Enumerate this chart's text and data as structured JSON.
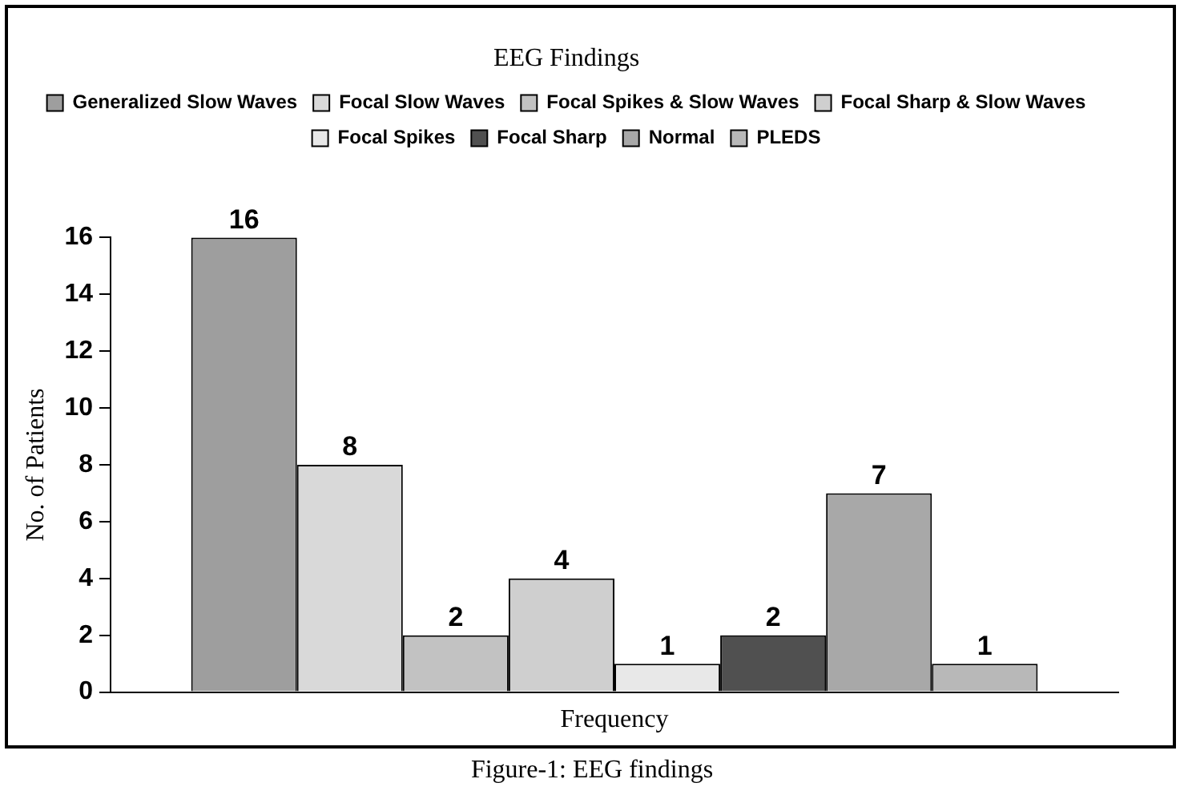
{
  "chart_data": {
    "type": "bar",
    "title": "EEG Findings",
    "xlabel": "Frequency",
    "ylabel": "No. of Patients",
    "categories": [
      null
    ],
    "series": [
      {
        "name": "Generalized Slow Waves",
        "color": "#9e9e9e",
        "values": [
          16
        ]
      },
      {
        "name": "Focal Slow Waves",
        "color": "#d9d9d9",
        "values": [
          8
        ]
      },
      {
        "name": "Focal Spikes & Slow Waves",
        "color": "#c2c2c2",
        "values": [
          2
        ]
      },
      {
        "name": "Focal Sharp & Slow Waves",
        "color": "#cfcfcf",
        "values": [
          4
        ]
      },
      {
        "name": "Focal Spikes",
        "color": "#e8e8e8",
        "values": [
          1
        ]
      },
      {
        "name": "Focal Sharp",
        "color": "#505050",
        "values": [
          2
        ]
      },
      {
        "name": "Normal",
        "color": "#a8a8a8",
        "values": [
          7
        ]
      },
      {
        "name": "PLEDS",
        "color": "#b8b8b8",
        "values": [
          1
        ]
      }
    ],
    "ylim": [
      0,
      16
    ],
    "yticks": [
      0,
      2,
      4,
      6,
      8,
      10,
      12,
      14,
      16
    ],
    "grid": false,
    "legend": "top",
    "data_labels": true,
    "annotations": [
      "Figure-1: EEG findings"
    ]
  }
}
